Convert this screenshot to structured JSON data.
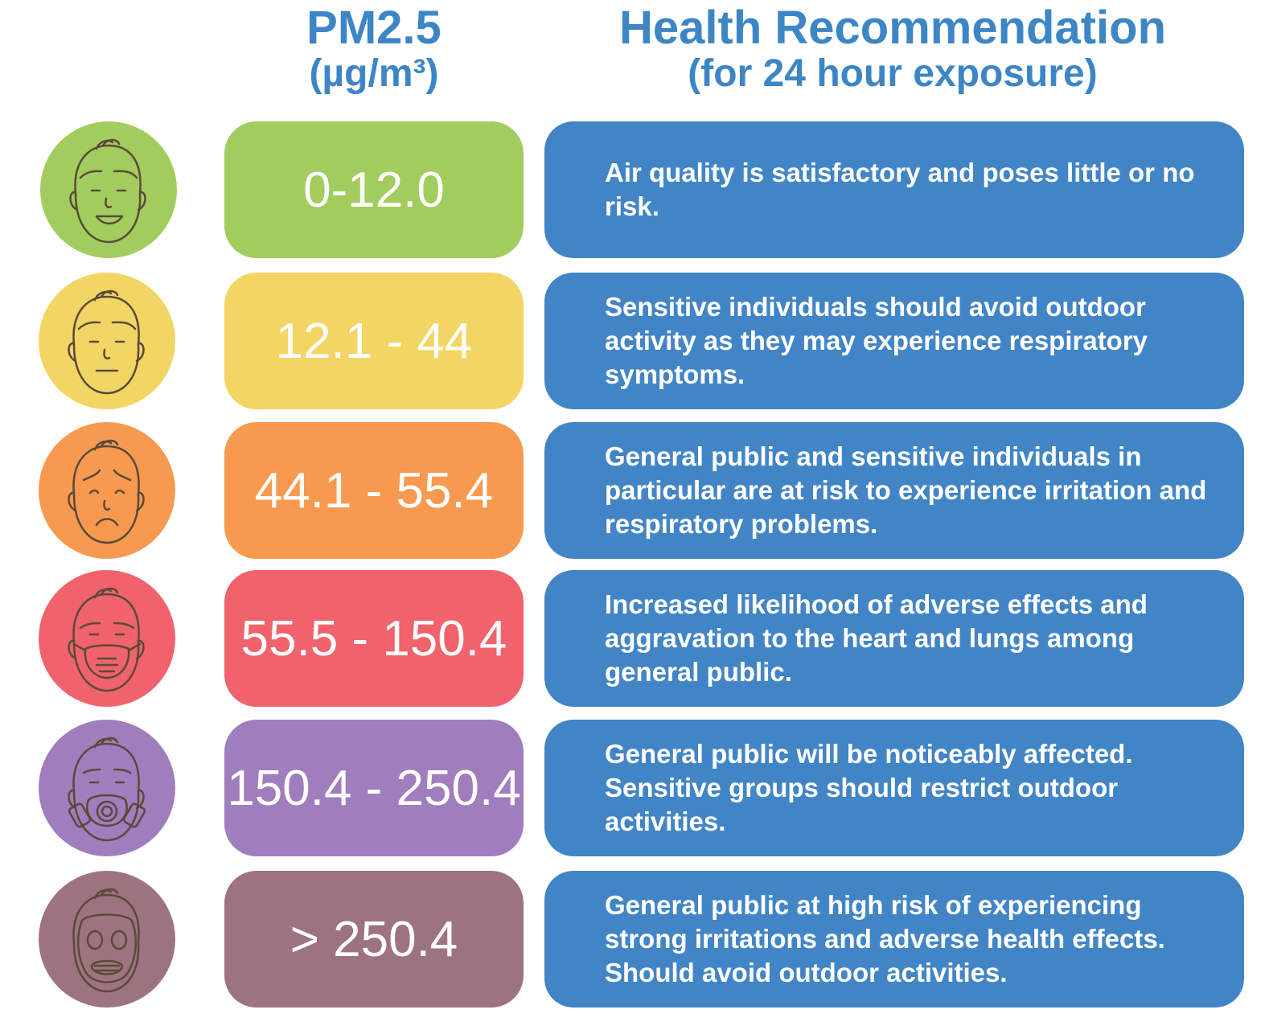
{
  "header": {
    "pm_title": "PM2.5",
    "pm_unit": "(µg/m³)",
    "rec_title": "Health Recommendation",
    "rec_subtitle": "(for 24 hour exposure)"
  },
  "rows": [
    {
      "range": "0-12.0",
      "recommendation": "Air quality is satisfactory and poses little or no risk.",
      "color": "#a3cc5e",
      "face": "smiling-face-icon"
    },
    {
      "range": "12.1 - 44",
      "recommendation": "Sensitive individuals should avoid outdoor activity as they may experience respiratory symptoms.",
      "color": "#f3d564",
      "face": "neutral-face-icon"
    },
    {
      "range": "44.1 - 55.4",
      "recommendation": "General public and sensitive individuals in particular are at risk to experience irritation and respiratory problems.",
      "color": "#f79a4f",
      "face": "worried-face-icon"
    },
    {
      "range": "55.5 - 150.4",
      "recommendation": "Increased likelihood of adverse effects and aggravation to the heart and lungs among general public.",
      "color": "#f0626c",
      "face": "face-mask-icon"
    },
    {
      "range": "150.4 - 250.4",
      "recommendation": "General public will be noticeably affected. Sensitive groups should restrict outdoor activities.",
      "color": "#a07dbc",
      "face": "respirator-face-icon"
    },
    {
      "range": "> 250.4",
      "recommendation": "General public at high risk of experiencing strong irritations and adverse health effects. Should avoid outdoor activities.",
      "color": "#9e7380",
      "face": "gas-mask-icon"
    }
  ],
  "colors": {
    "header_text": "#3d86c6",
    "recommendation_box": "#4285c6",
    "icon_stroke": "#5a4a3a"
  }
}
